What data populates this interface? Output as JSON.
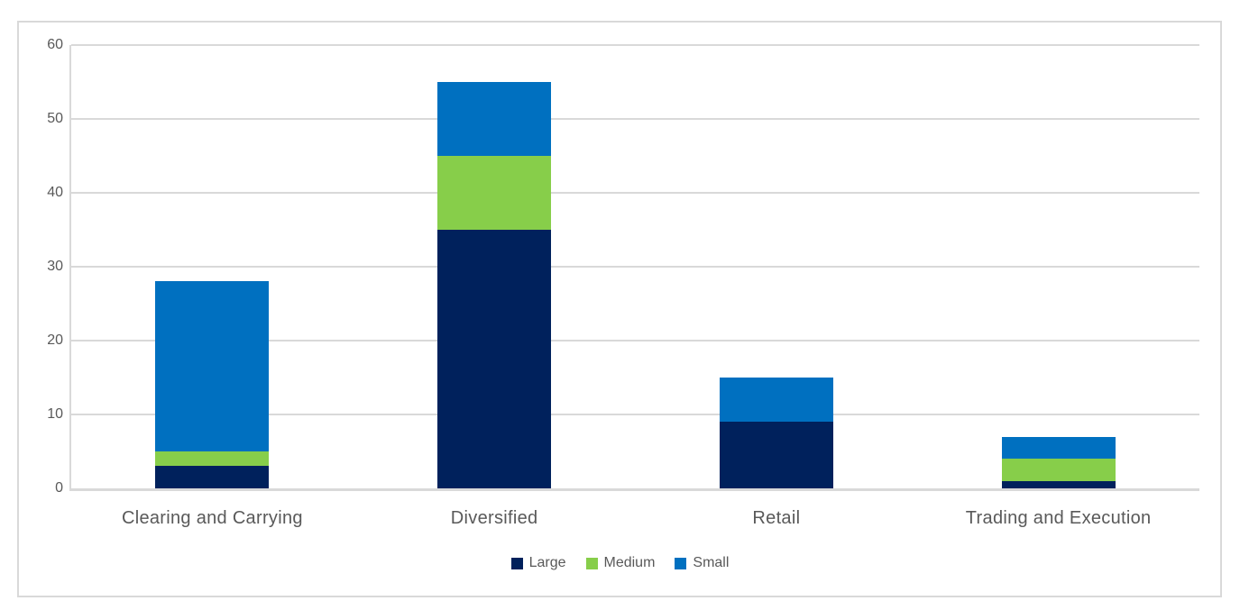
{
  "chart_data": {
    "type": "bar",
    "stacked": true,
    "title": "",
    "xlabel": "",
    "ylabel": "",
    "categories": [
      "Clearing and Carrying",
      "Diversified",
      "Retail",
      "Trading and Execution"
    ],
    "series": [
      {
        "name": "Large",
        "color": "#00215C",
        "values": [
          3,
          35,
          9,
          1
        ]
      },
      {
        "name": "Medium",
        "color": "#87CE4A",
        "values": [
          2,
          10,
          0,
          3
        ]
      },
      {
        "name": "Small",
        "color": "#0070C0",
        "values": [
          23,
          10,
          6,
          3
        ]
      }
    ],
    "totals": [
      28,
      55,
      15,
      7
    ],
    "ylim": [
      0,
      60
    ],
    "yticks": [
      0,
      10,
      20,
      30,
      40,
      50,
      60
    ],
    "grid": true,
    "legend_position": "bottom"
  },
  "colors": {
    "grid": "#D9D9D9",
    "frame_border": "#D9D9D9",
    "axis_text": "#595959",
    "background": "#FFFFFF"
  }
}
